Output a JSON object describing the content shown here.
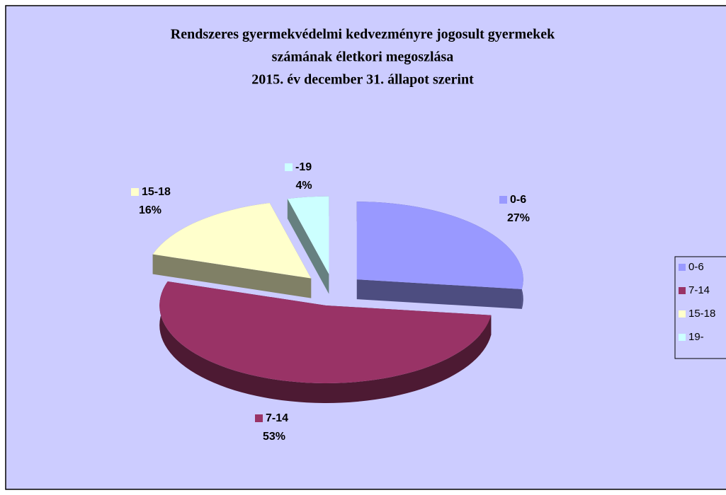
{
  "chart_data": {
    "type": "pie",
    "title": [
      "Rendszeres gyermekvédelmi kedvezményre jogosult gyermekek",
      "számának életkori megoszlása",
      "2015. év december 31. állapot szerint"
    ],
    "categories": [
      "0-6",
      "7-14",
      "15-18",
      "19-"
    ],
    "slice_labels": [
      "0-6",
      "7-14",
      "15-18",
      "-19"
    ],
    "values": [
      27,
      53,
      16,
      4
    ],
    "value_labels": [
      "27%",
      "53%",
      "16%",
      "4%"
    ],
    "colors": [
      "#9999ff",
      "#993366",
      "#ffffcc",
      "#ccffff"
    ],
    "legend": "right"
  }
}
